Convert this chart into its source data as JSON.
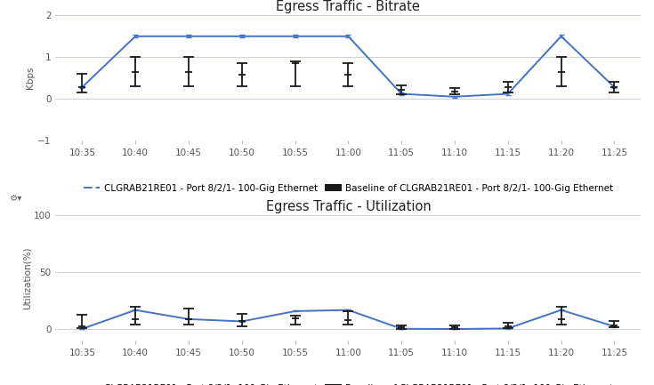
{
  "title1": "Egress Traffic - Bitrate",
  "title2": "Egress Traffic - Utilization",
  "ylabel1": "Kbps",
  "ylabel2": "Utilization(%)",
  "xtick_labels": [
    "10:35",
    "10:40",
    "10:45",
    "10:50",
    "10:55",
    "11:00",
    "11:05",
    "11:10",
    "11:15",
    "11:20",
    "11:25"
  ],
  "x_positions": [
    0,
    1,
    2,
    3,
    4,
    5,
    6,
    7,
    8,
    9,
    10
  ],
  "line_color": "#4472C4",
  "baseline_color": "#1a1a1a",
  "line1_values": [
    0.28,
    1.5,
    1.5,
    1.5,
    1.5,
    1.5,
    0.12,
    0.05,
    0.12,
    1.5,
    0.28
  ],
  "line1_yerr_low": [
    0.03,
    0.03,
    0.03,
    0.03,
    0.03,
    0.03,
    0.03,
    0.02,
    0.03,
    0.03,
    0.03
  ],
  "line1_yerr_high": [
    0.03,
    0.03,
    0.03,
    0.03,
    0.03,
    0.03,
    0.03,
    0.02,
    0.03,
    0.03,
    0.03
  ],
  "baseline1_values": [
    0.28,
    0.65,
    0.65,
    0.58,
    0.85,
    0.58,
    0.22,
    0.18,
    0.28,
    0.65,
    0.28
  ],
  "baseline1_yerr_low": [
    0.12,
    0.35,
    0.35,
    0.28,
    0.55,
    0.28,
    0.1,
    0.08,
    0.12,
    0.35,
    0.12
  ],
  "baseline1_yerr_high": [
    0.32,
    0.35,
    0.35,
    0.28,
    0.05,
    0.28,
    0.1,
    0.08,
    0.12,
    0.35,
    0.12
  ],
  "ylim1": [
    -1,
    2
  ],
  "yticks1": [
    -1,
    0,
    1,
    2
  ],
  "line2_values": [
    0.5,
    17,
    9,
    7,
    16,
    17,
    0.5,
    0.3,
    0.8,
    17,
    2.5
  ],
  "line2_yerr_low": [
    0.2,
    0.4,
    0.4,
    0.4,
    0.4,
    0.4,
    0.2,
    0.15,
    0.3,
    0.4,
    0.3
  ],
  "line2_yerr_high": [
    0.2,
    0.4,
    0.4,
    0.4,
    0.4,
    0.4,
    0.2,
    0.15,
    0.3,
    0.4,
    0.3
  ],
  "baseline2_values": [
    2.5,
    9,
    9,
    7,
    10,
    8,
    1.5,
    1.5,
    2.5,
    9,
    3.5
  ],
  "baseline2_yerr_low": [
    1.5,
    5,
    5,
    4,
    6,
    4,
    0.8,
    0.8,
    1.5,
    5,
    2
  ],
  "baseline2_yerr_high": [
    10,
    11,
    9,
    7,
    2,
    8,
    2,
    2,
    3,
    11,
    4
  ],
  "ylim2": [
    -10,
    100
  ],
  "yticks2": [
    0,
    50,
    100
  ],
  "legend_line_label": "CLGRAB21RE01 - Port 8/2/1- 100-Gig Ethernet",
  "legend_baseline_label": "Baseline of CLGRAB21RE01 - Port 8/2/1- 100-Gig Ethernet",
  "background_color": "#ffffff",
  "grid_color": "#c8d0dc",
  "title_fontsize": 10.5,
  "label_fontsize": 7.5,
  "tick_fontsize": 7.5,
  "legend_fontsize": 7.5,
  "gear_icon": "⚙▾"
}
